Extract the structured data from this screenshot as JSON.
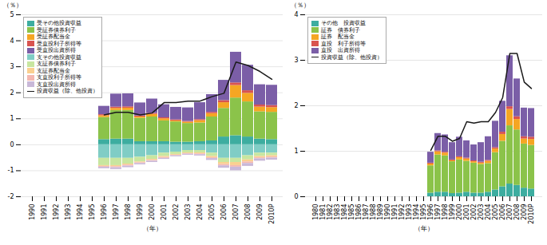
{
  "chart_data": [
    {
      "type": "bar",
      "stacked": true,
      "categories": [
        "1990",
        "1991",
        "1992",
        "1993",
        "1994",
        "1995",
        "1996",
        "1997",
        "1998",
        "1999",
        "2000",
        "2001",
        "2002",
        "2003",
        "2004",
        "2005",
        "2006",
        "2007",
        "2008",
        "2009",
        "2010P"
      ],
      "series": [
        {
          "name": "受その他投資収益",
          "color": "#3dada0",
          "values": [
            0,
            0,
            0,
            0,
            0,
            0,
            0.2,
            0.22,
            0.22,
            0.12,
            0.12,
            0.12,
            0.1,
            0.1,
            0.12,
            0.15,
            0.3,
            0.35,
            0.3,
            0.22,
            0.2
          ]
        },
        {
          "name": "受証券債券利子",
          "color": "#8bc34a",
          "values": [
            0,
            0,
            0,
            0,
            0,
            0,
            0.85,
            1.1,
            1.1,
            0.9,
            0.95,
            0.8,
            0.78,
            0.72,
            0.72,
            0.92,
            1.1,
            1.45,
            1.35,
            1.05,
            1.05
          ]
        },
        {
          "name": "受証券配当金",
          "color": "#f5a623",
          "values": [
            0,
            0,
            0,
            0,
            0,
            0,
            0.07,
            0.08,
            0.09,
            0.05,
            0.1,
            0.08,
            0.04,
            0.05,
            0.09,
            0.13,
            0.22,
            0.48,
            0.33,
            0.18,
            0.18
          ]
        },
        {
          "name": "受直投利子所得等",
          "color": "#d9534f",
          "values": [
            0,
            0,
            0,
            0,
            0,
            0,
            0.04,
            0.05,
            0.05,
            0.04,
            0.04,
            0.04,
            0.04,
            0.03,
            0.04,
            0.05,
            0.08,
            0.1,
            0.1,
            0.08,
            0.08
          ]
        },
        {
          "name": "受直投出資所得",
          "color": "#7b5ea7",
          "values": [
            0,
            0,
            0,
            0,
            0,
            0,
            0.32,
            0.5,
            0.5,
            0.5,
            0.55,
            0.5,
            0.48,
            0.52,
            0.65,
            0.68,
            0.78,
            1.18,
            0.98,
            0.78,
            0.78
          ]
        },
        {
          "name": "支その他投資収益",
          "color": "#80cdc5",
          "values": [
            0,
            0,
            0,
            0,
            0,
            0,
            -0.52,
            -0.52,
            -0.52,
            -0.48,
            -0.42,
            -0.32,
            -0.28,
            -0.22,
            -0.22,
            -0.32,
            -0.52,
            -0.52,
            -0.42,
            -0.32,
            -0.32
          ]
        },
        {
          "name": "支証券債券利子",
          "color": "#c8e6a0",
          "values": [
            0,
            0,
            0,
            0,
            0,
            0,
            -0.28,
            -0.28,
            -0.22,
            -0.18,
            -0.14,
            -0.13,
            -0.09,
            -0.09,
            -0.09,
            -0.13,
            -0.16,
            -0.16,
            -0.16,
            -0.13,
            -0.1
          ]
        },
        {
          "name": "支証券配当金",
          "color": "#fad090",
          "values": [
            0,
            0,
            0,
            0,
            0,
            0,
            -0.03,
            -0.04,
            -0.04,
            -0.03,
            -0.04,
            -0.04,
            -0.03,
            -0.03,
            -0.04,
            -0.05,
            -0.08,
            -0.12,
            -0.08,
            -0.05,
            -0.05
          ]
        },
        {
          "name": "支直投利子所得等",
          "color": "#f4b8b0",
          "values": [
            0,
            0,
            0,
            0,
            0,
            0,
            -0.03,
            -0.04,
            -0.04,
            -0.03,
            -0.03,
            -0.03,
            -0.02,
            -0.02,
            -0.03,
            -0.03,
            -0.05,
            -0.06,
            -0.06,
            -0.04,
            -0.04
          ]
        },
        {
          "name": "支直投出資所得",
          "color": "#c9b8d8",
          "values": [
            0,
            0,
            0,
            0,
            0,
            0,
            -0.06,
            -0.07,
            -0.06,
            -0.05,
            -0.05,
            -0.04,
            -0.04,
            -0.04,
            -0.05,
            -0.07,
            -0.09,
            -0.14,
            -0.11,
            -0.09,
            -0.08
          ]
        },
        {
          "name": "投資収益（除、他投資）",
          "type": "line",
          "color": "#1a1a1a",
          "values": [
            null,
            null,
            null,
            null,
            null,
            null,
            1.15,
            1.25,
            1.25,
            1.15,
            1.22,
            1.62,
            1.62,
            1.68,
            1.68,
            1.85,
            1.98,
            3.18,
            3.05,
            2.82,
            2.52
          ]
        }
      ],
      "xlabel": "（年）",
      "ylabel": "（％）",
      "ylim": [
        -2,
        5
      ],
      "yticks": [
        -2,
        -1,
        0,
        1,
        2,
        3,
        4,
        5
      ],
      "grid": true,
      "legend": "upper left"
    },
    {
      "type": "bar",
      "stacked": true,
      "categories": [
        "1980",
        "1981",
        "1982",
        "1983",
        "1984",
        "1985",
        "1986",
        "1987",
        "1988",
        "1989",
        "1990",
        "1991",
        "1992",
        "1993",
        "1994",
        "1995",
        "1996",
        "1997",
        "1998",
        "1999",
        "2000",
        "2001",
        "2002",
        "2003",
        "2004",
        "2005",
        "2006",
        "2007",
        "2008",
        "2009",
        "2010P"
      ],
      "series": [
        {
          "name": "その他　投資収益",
          "color": "#3dada0",
          "values": [
            0,
            0,
            0,
            0,
            0,
            0,
            0,
            0,
            0,
            0,
            0,
            0,
            0,
            0,
            0,
            0,
            0.08,
            0.1,
            0.1,
            0.07,
            0.08,
            0.1,
            0.08,
            0.08,
            0.1,
            0.15,
            0.22,
            0.28,
            0.25,
            0.19,
            0.17
          ]
        },
        {
          "name": "証券　債券利子",
          "color": "#8bc34a",
          "values": [
            0,
            0,
            0,
            0,
            0,
            0,
            0,
            0,
            0,
            0,
            0,
            0,
            0,
            0,
            0,
            0,
            0.6,
            0.82,
            0.8,
            0.7,
            0.73,
            0.68,
            0.66,
            0.63,
            0.63,
            0.82,
            1.0,
            1.28,
            1.22,
            0.97,
            0.96
          ]
        },
        {
          "name": "証券　配当金",
          "color": "#f5a623",
          "values": [
            0,
            0,
            0,
            0,
            0,
            0,
            0,
            0,
            0,
            0,
            0,
            0,
            0,
            0,
            0,
            0,
            0.04,
            0.07,
            0.06,
            0.02,
            0.05,
            0.05,
            0.03,
            0.03,
            0.05,
            0.08,
            0.15,
            0.36,
            0.23,
            0.11,
            0.13
          ]
        },
        {
          "name": "直投　利子所得等",
          "color": "#d9534f",
          "values": [
            0,
            0,
            0,
            0,
            0,
            0,
            0,
            0,
            0,
            0,
            0,
            0,
            0,
            0,
            0,
            0,
            0.02,
            0.02,
            0.02,
            0.02,
            0.02,
            0.02,
            0.02,
            0.02,
            0.02,
            0.03,
            0.05,
            0.06,
            0.06,
            0.05,
            0.05
          ]
        },
        {
          "name": "直投　出資所得",
          "color": "#7b5ea7",
          "values": [
            0,
            0,
            0,
            0,
            0,
            0,
            0,
            0,
            0,
            0,
            0,
            0,
            0,
            0,
            0,
            0,
            0.24,
            0.38,
            0.38,
            0.38,
            0.43,
            0.38,
            0.35,
            0.43,
            0.52,
            0.58,
            0.68,
            1.12,
            0.83,
            0.63,
            0.63
          ]
        },
        {
          "name": "投資収益（除、他投資）",
          "type": "line",
          "color": "#1a1a1a",
          "values": [
            null,
            null,
            null,
            null,
            null,
            null,
            null,
            null,
            null,
            null,
            null,
            null,
            null,
            null,
            null,
            null,
            1.02,
            1.33,
            1.33,
            1.22,
            1.28,
            1.65,
            1.62,
            1.65,
            1.65,
            1.85,
            2.18,
            3.15,
            3.15,
            2.52,
            2.38
          ]
        }
      ],
      "xlabel": "（年）",
      "ylabel": "（％）",
      "ylim": [
        0,
        4
      ],
      "yticks": [
        0,
        1,
        2,
        3,
        4
      ],
      "grid": true,
      "legend": "upper left"
    }
  ]
}
